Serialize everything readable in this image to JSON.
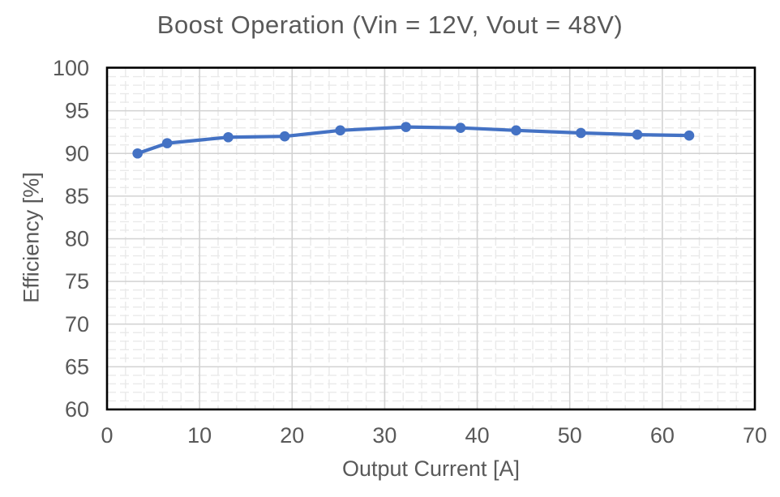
{
  "chart_data": {
    "type": "line",
    "title": "Boost Operation (Vin = 12V, Vout = 48V)",
    "xlabel": "Output Current [A]",
    "ylabel": "Efficiency [%]",
    "xlim": [
      0,
      70
    ],
    "ylim": [
      60,
      100
    ],
    "x_ticks": [
      0,
      10,
      20,
      30,
      40,
      50,
      60,
      70
    ],
    "y_ticks": [
      60,
      65,
      70,
      75,
      80,
      85,
      90,
      95,
      100
    ],
    "x_minor_step": 2,
    "y_minor_step": 1,
    "grid": "major solid + minor dashed",
    "legend_position": "none",
    "series": [
      {
        "name": "Efficiency",
        "x": [
          3.3,
          6.5,
          13.1,
          19.2,
          25.2,
          32.3,
          38.2,
          44.2,
          51.2,
          57.3,
          62.9
        ],
        "y": [
          90.0,
          91.2,
          91.9,
          92.0,
          92.7,
          93.1,
          93.0,
          92.7,
          92.4,
          92.2,
          92.1
        ],
        "marker": "circle"
      }
    ],
    "colors": {
      "background": "#FFFFFF",
      "series_line": "#4472C4",
      "plot_border": "#000000",
      "major_grid": "#D2D2D2",
      "minor_grid": "#E9E9E9",
      "text": "#595959"
    }
  }
}
